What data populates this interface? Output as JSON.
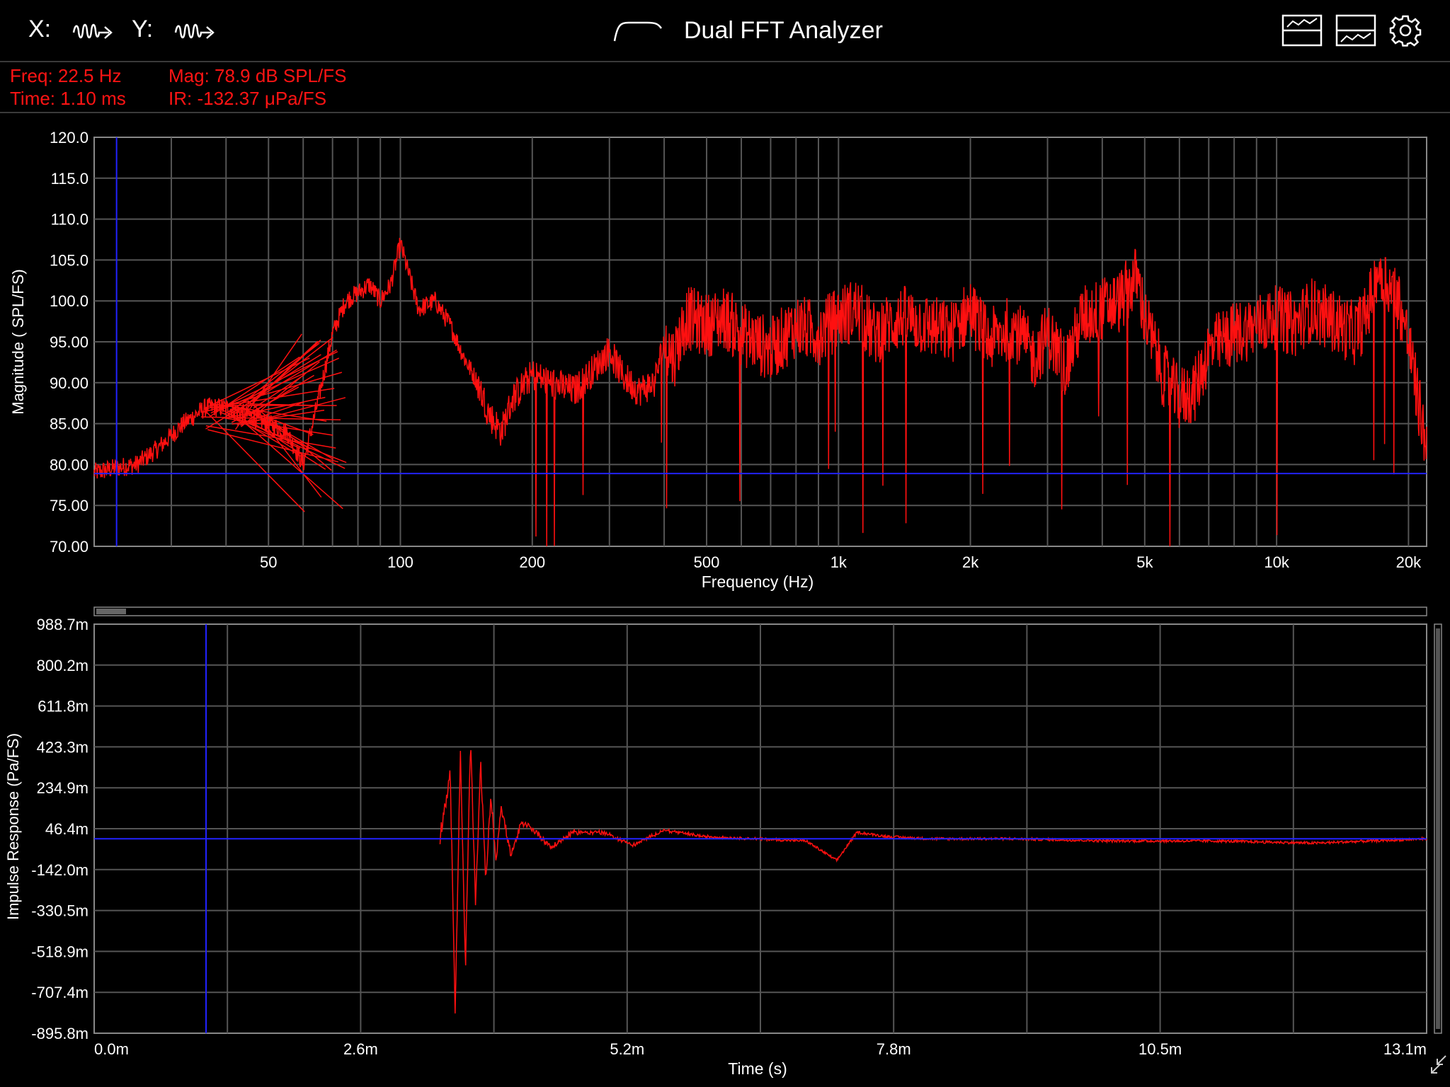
{
  "toolbar": {
    "x_label": "X:",
    "y_label": "Y:",
    "title": "Dual FFT Analyzer",
    "icons": [
      "waveform-arrow-icon",
      "waveform-arrow-icon",
      "transfer-curve-icon",
      "layout-top-icon",
      "layout-bottom-icon",
      "gear-icon"
    ]
  },
  "readout": {
    "freq": "Freq: 22.5 Hz",
    "time": "Time: 1.10 ms",
    "mag": "Mag: 78.9 dB SPL/FS",
    "ir": "IR: -132.37 μPa/FS"
  },
  "colors": {
    "trace": "#ff1010",
    "cursor": "#2222ff",
    "grid": "#555555",
    "readout": "#ff1414"
  },
  "magnitude_plot": {
    "ylabel": "Magnitude ( SPL/FS)",
    "xlabel": "Frequency (Hz)",
    "y_ticks": [
      "120.0",
      "115.0",
      "110.0",
      "105.0",
      "100.0",
      "95.00",
      "90.00",
      "85.00",
      "80.00",
      "75.00",
      "70.00"
    ],
    "x_ticks": [
      "50",
      "100",
      "200",
      "500",
      "1k",
      "2k",
      "5k",
      "10k",
      "20k"
    ],
    "cursor_freq": 22.5,
    "cursor_mag": 78.9
  },
  "impulse_plot": {
    "ylabel": "Impulse Response (Pa/FS)",
    "xlabel": "Time (s)",
    "y_ticks": [
      "988.7m",
      "800.2m",
      "611.8m",
      "423.3m",
      "234.9m",
      "46.4m",
      "-142.0m",
      "-330.5m",
      "-518.9m",
      "-707.4m",
      "-895.8m"
    ],
    "x_ticks": [
      "0.0m",
      "2.6m",
      "5.2m",
      "7.8m",
      "10.5m",
      "13.1m"
    ],
    "cursor_time_ms": 1.1,
    "cursor_value": -0.000132
  },
  "chart_data": [
    {
      "type": "line",
      "title": "",
      "xlabel": "Frequency (Hz)",
      "ylabel": "Magnitude ( SPL/FS)",
      "x_scale": "log",
      "xlim": [
        20,
        22000
      ],
      "ylim": [
        70,
        120
      ],
      "grid": true,
      "series": [
        {
          "x": [
            20,
            22,
            25,
            28,
            32,
            36,
            40,
            45,
            50,
            55,
            60,
            65,
            70,
            75,
            80,
            85,
            90,
            95,
            100,
            110,
            120,
            130,
            140,
            150,
            160,
            170,
            180,
            200,
            220,
            250,
            280,
            300,
            320,
            350,
            380,
            400,
            420,
            450,
            500,
            550,
            600,
            650,
            700,
            800,
            900,
            1000,
            1100,
            1200,
            1400,
            1600,
            1800,
            2000,
            2200,
            2500,
            2800,
            3000,
            3300,
            3600,
            4000,
            4400,
            4800,
            5000,
            5500,
            6000,
            6500,
            7000,
            8000,
            9000,
            10000,
            11000,
            12000,
            13000,
            14000,
            15000,
            16000,
            17000,
            18000,
            19000,
            20000,
            21000,
            22000
          ],
          "y": [
            79,
            79.5,
            80,
            82,
            85,
            87,
            87,
            86,
            85,
            84,
            80,
            88,
            96,
            100,
            101,
            102,
            100,
            102,
            107,
            99,
            100,
            97,
            93,
            90,
            86,
            84,
            88,
            91,
            90,
            89,
            92,
            94,
            91,
            89,
            90,
            95,
            93,
            98,
            97,
            98,
            96,
            95,
            94,
            97,
            96,
            98,
            99,
            96,
            98,
            97,
            96,
            99,
            95,
            97,
            93,
            96,
            92,
            98,
            99,
            100,
            103,
            98,
            91,
            88,
            89,
            94,
            96,
            97,
            98,
            97,
            99,
            98,
            97,
            96,
            98,
            104,
            102,
            100,
            95,
            88,
            82
          ]
        }
      ]
    },
    {
      "type": "line",
      "title": "",
      "xlabel": "Time (s)",
      "ylabel": "Impulse Response (Pa/FS)",
      "xlim_ms": [
        0,
        13.1
      ],
      "ylim": [
        -0.8958,
        0.9887
      ],
      "grid": true,
      "series": [
        {
          "x_ms": [
            0,
            3.4,
            3.5,
            3.55,
            3.6,
            3.65,
            3.7,
            3.75,
            3.8,
            3.85,
            3.9,
            3.95,
            4.0,
            4.1,
            4.2,
            4.3,
            4.5,
            4.7,
            5.0,
            5.3,
            5.6,
            6.0,
            6.5,
            7.0,
            7.3,
            7.5,
            7.8,
            8.2,
            9.0,
            10.0,
            11.0,
            12.0,
            13.1
          ],
          "y": [
            0.0,
            0.01,
            0.3,
            -0.8,
            0.4,
            -0.6,
            0.45,
            -0.3,
            0.35,
            -0.2,
            0.2,
            -0.1,
            0.15,
            -0.08,
            0.07,
            0.05,
            -0.04,
            0.03,
            0.03,
            -0.03,
            0.04,
            0.01,
            0.0,
            -0.01,
            -0.1,
            0.03,
            0.01,
            0.0,
            0.0,
            -0.01,
            -0.01,
            -0.02,
            0.0
          ]
        }
      ]
    }
  ]
}
